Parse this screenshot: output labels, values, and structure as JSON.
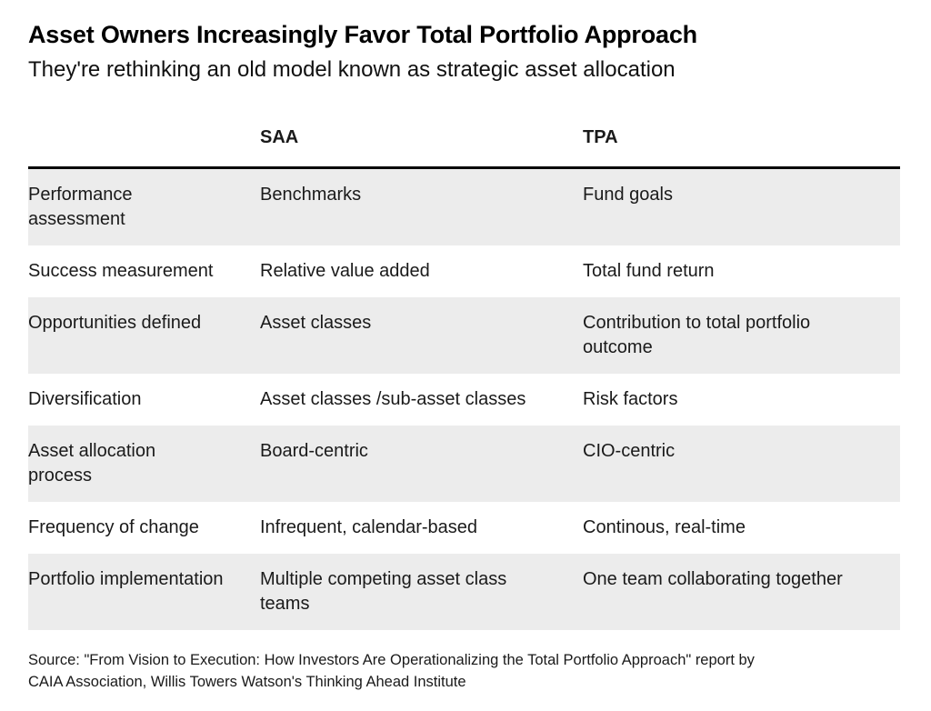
{
  "chart_data": {
    "type": "table",
    "title": "Asset Owners Increasingly Favor Total Portfolio Approach",
    "subtitle": "They're rethinking an old model known as strategic asset allocation",
    "columns": [
      "",
      "SAA",
      "TPA"
    ],
    "rows": [
      {
        "label": "Performance assessment",
        "saa": "Benchmarks",
        "tpa": "Fund goals"
      },
      {
        "label": "Success measurement",
        "saa": "Relative value added",
        "tpa": "Total fund return"
      },
      {
        "label": "Opportunities defined",
        "saa": "Asset classes",
        "tpa": "Contribution to total portfolio outcome"
      },
      {
        "label": "Diversification",
        "saa": "Asset classes /sub-asset classes",
        "tpa": "Risk factors"
      },
      {
        "label": "Asset allocation process",
        "saa": "Board-centric",
        "tpa": "CIO-centric"
      },
      {
        "label": "Frequency of change",
        "saa": "Infrequent, calendar-based",
        "tpa": "Continous, real-time"
      },
      {
        "label": "Portfolio implementation",
        "saa": "Multiple competing asset class teams",
        "tpa": "One team collaborating together"
      }
    ],
    "source": "Source: \"From Vision to Execution: How Investors Are Operationalizing the Total Portfolio Approach\" report by CAIA Association, Willis Towers Watson's Thinking Ahead Institute",
    "source_line1": "Source: \"From Vision to Execution: How Investors Are Operationalizing the Total Portfolio Approach\" report by",
    "source_line2": "CAIA Association, Willis Towers Watson's Thinking Ahead Institute",
    "layout": {
      "legend": "none",
      "grid": "off",
      "row_stripe_color": "#ececec",
      "header_rule_color": "#000000",
      "background_color": "#ffffff",
      "text_color": "#1a1a1a"
    }
  }
}
